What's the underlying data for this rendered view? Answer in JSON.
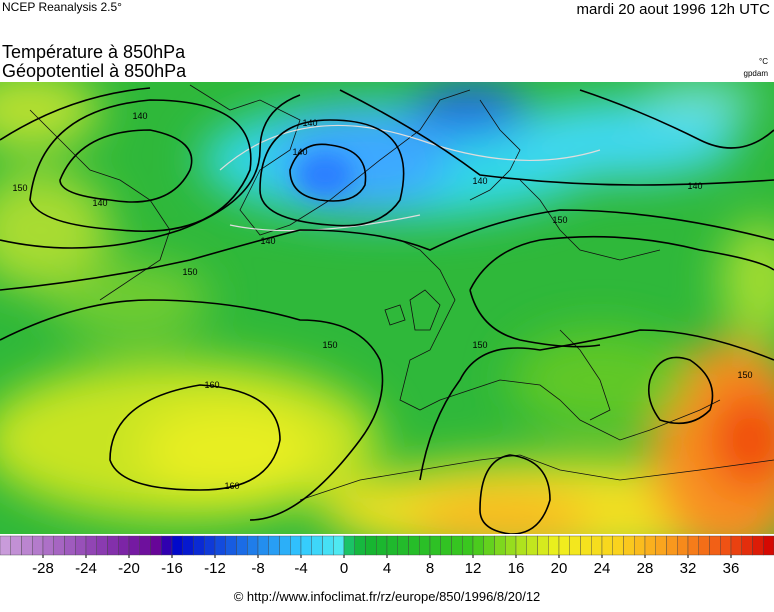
{
  "header": {
    "source": "NCEP Reanalysis 2.5°",
    "date": "mardi 20 aout 1996 12h UTC",
    "title_line1": "Température à 850hPa",
    "title_line2": "Géopotentiel à 850hPa",
    "unit_temperature": "°C",
    "unit_geopotential": "gpdam"
  },
  "map": {
    "contour_labels": [
      140,
      140,
      140,
      140,
      140,
      140,
      140,
      150,
      150,
      150,
      150,
      150,
      150,
      160,
      160
    ]
  },
  "colorbar": {
    "lim": [
      -32,
      40
    ],
    "ticks": [
      -28,
      -24,
      -20,
      -16,
      -12,
      -8,
      -4,
      0,
      4,
      8,
      12,
      16,
      20,
      24,
      28,
      32,
      36
    ]
  },
  "footer": {
    "credit": "© http://www.infoclimat.fr/rz/europe/850/1996/8/20/12"
  }
}
